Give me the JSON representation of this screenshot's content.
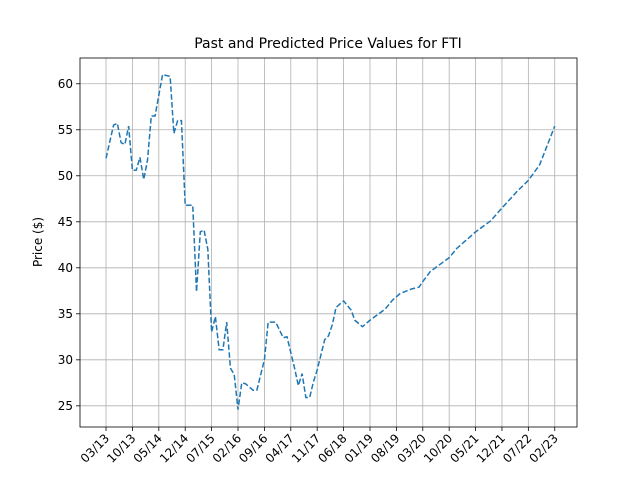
{
  "chart_data": {
    "type": "line",
    "title": "Past and Predicted Price Values for FTI",
    "ylabel": "Price ($)",
    "grid": true,
    "xlim": [
      -6.9,
      124.9
    ],
    "ylim": [
      22.7,
      62.8
    ],
    "yticks": [
      25,
      30,
      35,
      40,
      45,
      50,
      55,
      60
    ],
    "xticks": [
      {
        "value": 0,
        "label": "03/13"
      },
      {
        "value": 7,
        "label": "10/13"
      },
      {
        "value": 14,
        "label": "05/14"
      },
      {
        "value": 21,
        "label": "12/14"
      },
      {
        "value": 28,
        "label": "07/15"
      },
      {
        "value": 35,
        "label": "02/16"
      },
      {
        "value": 42,
        "label": "09/16"
      },
      {
        "value": 49,
        "label": "04/17"
      },
      {
        "value": 56,
        "label": "11/17"
      },
      {
        "value": 63,
        "label": "06/18"
      },
      {
        "value": 70,
        "label": "01/19"
      },
      {
        "value": 77,
        "label": "08/19"
      },
      {
        "value": 84,
        "label": "03/20"
      },
      {
        "value": 91,
        "label": "10/20"
      },
      {
        "value": 98,
        "label": "05/21"
      },
      {
        "value": 105,
        "label": "12/21"
      },
      {
        "value": 112,
        "label": "07/22"
      },
      {
        "value": 119,
        "label": "02/23"
      }
    ],
    "series": [
      {
        "color": "#1f77b4",
        "dashed": true,
        "x": [
          0,
          2,
          3,
          4,
          5,
          6,
          7,
          8,
          9,
          10,
          11,
          12,
          13,
          15,
          17,
          18,
          19,
          20,
          21,
          23,
          24,
          25,
          26,
          27,
          28,
          29,
          30,
          31,
          32,
          33,
          34,
          35,
          36,
          37,
          39,
          40,
          42,
          43,
          45,
          47,
          48,
          50,
          51,
          52,
          53,
          54,
          55,
          56,
          58,
          59,
          60,
          61,
          63,
          65,
          66,
          68,
          70,
          72,
          74,
          76,
          78,
          81,
          83,
          84,
          86,
          89,
          91,
          93,
          98,
          102,
          105,
          109,
          112,
          115,
          119
        ],
        "values": [
          51.9,
          55.5,
          55.7,
          53.6,
          53.4,
          55.4,
          50.6,
          50.6,
          52,
          49.6,
          51.7,
          56.5,
          56.5,
          61,
          60.8,
          54.6,
          56,
          56,
          46.8,
          46.8,
          37.4,
          43.9,
          44.1,
          42,
          33,
          34.7,
          31.1,
          31.1,
          34.1,
          29.1,
          28.4,
          24.6,
          27.5,
          27.4,
          26.7,
          26.7,
          30,
          34.1,
          34.1,
          32.4,
          32.5,
          29.1,
          27.2,
          28.5,
          25.9,
          25.9,
          27.6,
          28.9,
          32.2,
          32.6,
          33.8,
          35.7,
          36.4,
          35.4,
          34.3,
          33.6,
          34.3,
          34.9,
          35.5,
          36.5,
          37.2,
          37.7,
          37.9,
          38.5,
          39.6,
          40.5,
          41.1,
          42.1,
          43.9,
          45.1,
          46.5,
          48.3,
          49.5,
          51.2,
          55.4
        ]
      }
    ]
  }
}
